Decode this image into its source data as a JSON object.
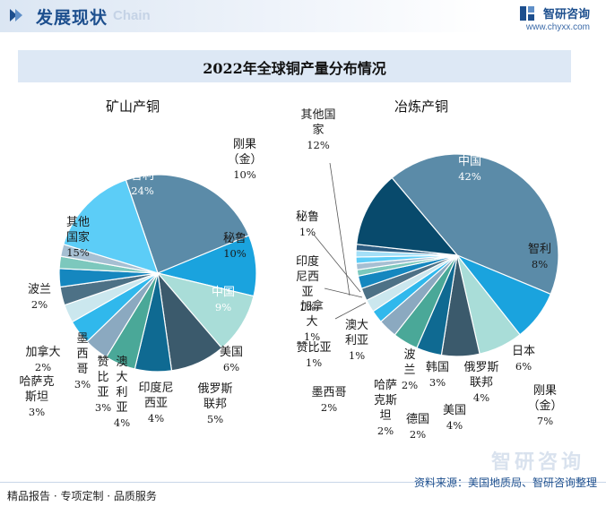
{
  "header": {
    "title": "发展现状",
    "ghost_text": "Chain",
    "brand_name": "智研咨询",
    "brand_url": "www.chyxx.com"
  },
  "chart_title": "2022年全球铜产量分布情况",
  "colors": {
    "header_blue": "#1d4f8e",
    "title_bar": "#dde8f5"
  },
  "chart_data": [
    {
      "type": "pie",
      "title": "矿山产铜",
      "unit": "%",
      "slices": [
        {
          "name": "智利",
          "value": 24,
          "label": "智利",
          "value_label": "24%",
          "color": "#5b8ba8",
          "text_color": "#ffffff"
        },
        {
          "name": "刚果（金）",
          "value": 10,
          "label": "刚果\n（金）",
          "value_label": "10%",
          "color": "#1aa3de",
          "text_color": "#1a1a1a"
        },
        {
          "name": "秘鲁",
          "value": 10,
          "label": "秘鲁",
          "value_label": "10%",
          "color": "#a9ddd8",
          "text_color": "#1a1a1a"
        },
        {
          "name": "中国",
          "value": 9,
          "label": "中国",
          "value_label": "9%",
          "color": "#3b5a6c",
          "text_color": "#ffffff"
        },
        {
          "name": "美国",
          "value": 6,
          "label": "美国",
          "value_label": "6%",
          "color": "#0f6a92",
          "text_color": "#1a1a1a"
        },
        {
          "name": "俄罗斯联邦",
          "value": 5,
          "label": "俄罗斯\n联邦",
          "value_label": "5%",
          "color": "#4aa898",
          "text_color": "#1a1a1a"
        },
        {
          "name": "印度尼西亚",
          "value": 4,
          "label": "印度尼\n西亚",
          "value_label": "4%",
          "color": "#8ba9c0",
          "text_color": "#1a1a1a"
        },
        {
          "name": "澳大利亚",
          "value": 4,
          "label": "澳\n大\n利\n亚",
          "value_label": "4%",
          "color": "#30b8ec",
          "text_color": "#1a1a1a"
        },
        {
          "name": "赞比亚",
          "value": 3,
          "label": "赞\n比\n亚",
          "value_label": "3%",
          "color": "#cbe7ee",
          "text_color": "#1a1a1a"
        },
        {
          "name": "墨西哥",
          "value": 3,
          "label": "墨\n西\n哥",
          "value_label": "3%",
          "color": "#4d7186",
          "text_color": "#1a1a1a"
        },
        {
          "name": "哈萨克斯坦",
          "value": 3,
          "label": "哈萨克\n斯坦",
          "value_label": "3%",
          "color": "#1587bf",
          "text_color": "#1a1a1a"
        },
        {
          "name": "加拿大",
          "value": 2,
          "label": "加拿大",
          "value_label": "2%",
          "color": "#7cc8bd",
          "text_color": "#1a1a1a"
        },
        {
          "name": "波兰",
          "value": 2,
          "label": "波兰",
          "value_label": "2%",
          "color": "#a6bfd2",
          "text_color": "#1a1a1a"
        },
        {
          "name": "其他国家",
          "value": 15,
          "label": "其他\n国家",
          "value_label": "15%",
          "color": "#5ccdf7",
          "text_color": "#1a1a1a"
        }
      ]
    },
    {
      "type": "pie",
      "title": "冶炼产铜",
      "unit": "%",
      "slices": [
        {
          "name": "中国",
          "value": 42,
          "label": "中国",
          "value_label": "42%",
          "color": "#5b8ba8",
          "text_color": "#ffffff"
        },
        {
          "name": "智利",
          "value": 8,
          "label": "智利",
          "value_label": "8%",
          "color": "#1aa3de",
          "text_color": "#1a1a1a"
        },
        {
          "name": "刚果（金）",
          "value": 7,
          "label": "刚果\n（金）",
          "value_label": "7%",
          "color": "#a9ddd8",
          "text_color": "#1a1a1a"
        },
        {
          "name": "日本",
          "value": 6,
          "label": "日本",
          "value_label": "6%",
          "color": "#3b5a6c",
          "text_color": "#1a1a1a"
        },
        {
          "name": "俄罗斯联邦",
          "value": 4,
          "label": "俄罗斯\n联邦",
          "value_label": "4%",
          "color": "#0f6a92",
          "text_color": "#1a1a1a"
        },
        {
          "name": "美国",
          "value": 4,
          "label": "美国",
          "value_label": "4%",
          "color": "#4aa898",
          "text_color": "#1a1a1a"
        },
        {
          "name": "韩国",
          "value": 3,
          "label": "韩国",
          "value_label": "3%",
          "color": "#8ba9c0",
          "text_color": "#1a1a1a"
        },
        {
          "name": "德国",
          "value": 2,
          "label": "德国",
          "value_label": "2%",
          "color": "#30b8ec",
          "text_color": "#1a1a1a"
        },
        {
          "name": "波兰",
          "value": 2,
          "label": "波\n兰",
          "value_label": "2%",
          "color": "#cbe7ee",
          "text_color": "#1a1a1a"
        },
        {
          "name": "哈萨克斯坦",
          "value": 2,
          "label": "哈萨\n克斯\n坦",
          "value_label": "2%",
          "color": "#4d7186",
          "text_color": "#1a1a1a"
        },
        {
          "name": "墨西哥",
          "value": 2,
          "label": "墨西哥",
          "value_label": "2%",
          "color": "#1587bf",
          "text_color": "#1a1a1a"
        },
        {
          "name": "澳大利亚",
          "value": 1,
          "label": "澳大\n利亚",
          "value_label": "1%",
          "color": "#7cc8bd",
          "text_color": "#1a1a1a"
        },
        {
          "name": "赞比亚",
          "value": 1,
          "label": "赞比亚",
          "value_label": "1%",
          "color": "#a6bfd2",
          "text_color": "#1a1a1a"
        },
        {
          "name": "加拿大",
          "value": 1,
          "label": "加拿\n大",
          "value_label": "1%",
          "color": "#5ccdf7",
          "text_color": "#1a1a1a"
        },
        {
          "name": "印度尼西亚",
          "value": 1,
          "label": "印度\n尼西\n亚",
          "value_label": "1%",
          "color": "#a3dff7",
          "text_color": "#1a1a1a"
        },
        {
          "name": "秘鲁",
          "value": 1,
          "label": "秘鲁",
          "value_label": "1%",
          "color": "#2c5d82",
          "text_color": "#1a1a1a"
        },
        {
          "name": "其他国家",
          "value": 12,
          "label": "其他国\n家",
          "value_label": "12%",
          "color": "#084a6c",
          "text_color": "#1a1a1a"
        }
      ]
    }
  ],
  "footer": {
    "left": "精品报告 · 专项定制 · 品质服务",
    "source": "资料来源：美国地质局、智研咨询整理",
    "watermark": "智研咨询"
  }
}
